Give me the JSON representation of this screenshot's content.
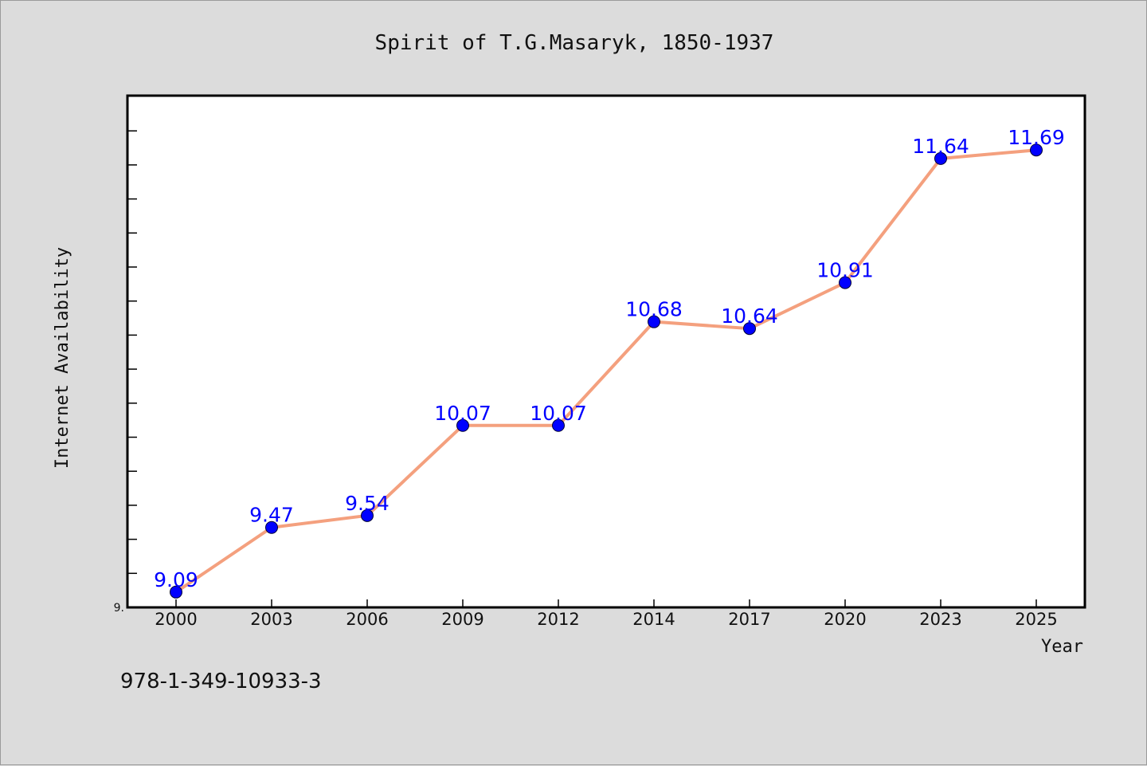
{
  "page": {
    "background": "#dcdcdc",
    "footer_text": "978-1-349-10933-3"
  },
  "chart_data": {
    "type": "line",
    "title": "Spirit of T.G.Masaryk, 1850-1937",
    "xlabel": "Year",
    "ylabel": "Internet Availability",
    "categories": [
      "2000",
      "2003",
      "2006",
      "2009",
      "2012",
      "2014",
      "2017",
      "2020",
      "2023",
      "2025"
    ],
    "series": [
      {
        "values": [
          9.09,
          9.47,
          9.54,
          10.07,
          10.07,
          10.68,
          10.64,
          10.91,
          11.64,
          11.69
        ],
        "data_labels": [
          "9.09",
          "9.47",
          "9.54",
          "10.07",
          "10.07",
          "10.68",
          "10.64",
          "10.91",
          "11.64",
          "11.69"
        ],
        "line_color": "#f4a07e",
        "marker_color": "#0000ff"
      }
    ],
    "y_tick_label": "9.",
    "ylim": [
      9.0,
      12.0
    ],
    "grid": false,
    "legend": "none"
  }
}
